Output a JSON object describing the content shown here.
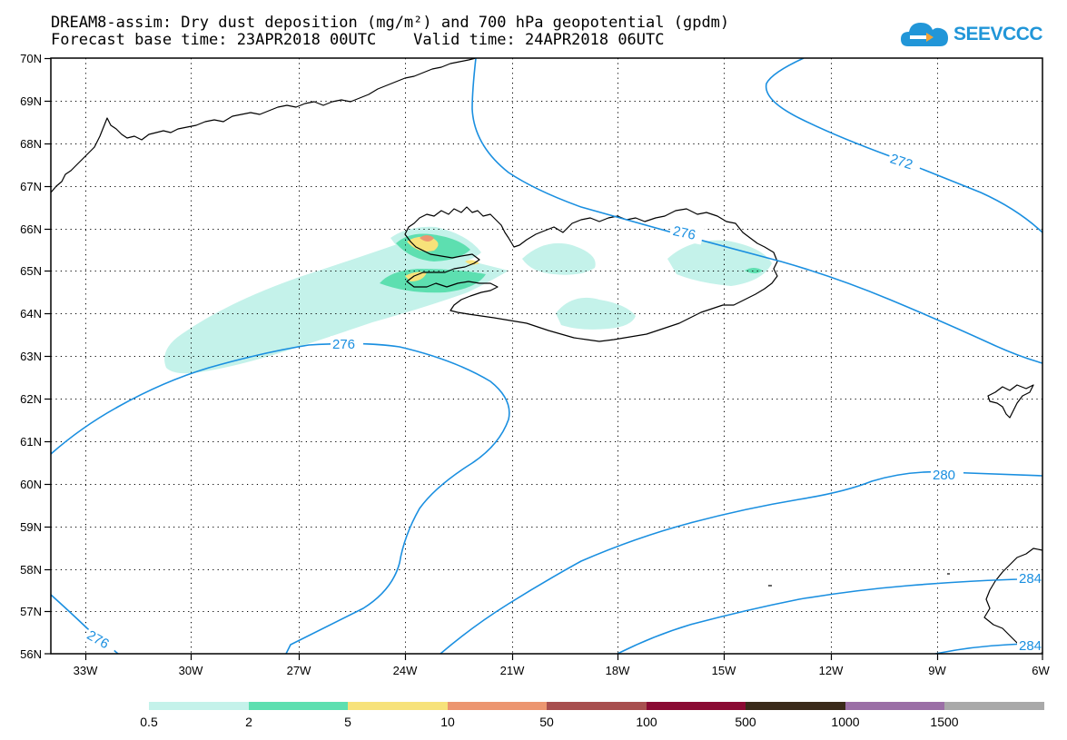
{
  "title": {
    "line1": "DREAM8-assim: Dry dust deposition (mg/m²) and 700 hPa geopotential (gpdm)",
    "line2": "Forecast base time: 23APR2018 00UTC    Valid time: 24APR2018 06UTC"
  },
  "logo": {
    "text": "SEEVCCC",
    "icon": "cloud-icon",
    "color": "#2196d8"
  },
  "map": {
    "lon_range": [
      -34.5,
      -6
    ],
    "lat_range": [
      56,
      70
    ],
    "lat_labels": [
      "70N",
      "69N",
      "68N",
      "67N",
      "66N",
      "65N",
      "64N",
      "63N",
      "62N",
      "61N",
      "60N",
      "59N",
      "58N",
      "57N",
      "56N"
    ],
    "lon_labels": [
      "33W",
      "30W",
      "27W",
      "24W",
      "21W",
      "18W",
      "15W",
      "12W",
      "9W",
      "6W"
    ],
    "grid": true,
    "contour_color": "#1a8fe0",
    "contour_labels": [
      "276",
      "272",
      "276",
      "280",
      "284",
      "276",
      "284"
    ]
  },
  "colorbar": {
    "labels": [
      "0.5",
      "2",
      "5",
      "10",
      "50",
      "100",
      "500",
      "1000",
      "1500"
    ],
    "colors": [
      "#c4f2ea",
      "#5ddfb0",
      "#f7e27a",
      "#ec9670",
      "#a84f4f",
      "#8a0a33",
      "#3a2a1a",
      "#9b6fa6",
      "#a9a9a9"
    ]
  }
}
